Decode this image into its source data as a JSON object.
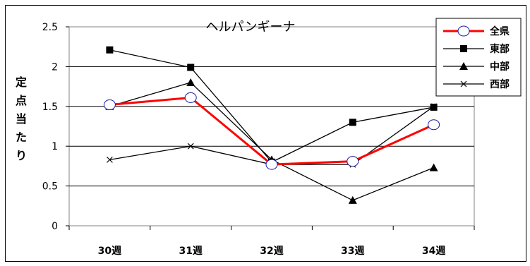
{
  "chart_data": {
    "type": "line",
    "title": "ヘルパンギーナ",
    "ylabel": "定点当たり",
    "xlabel": "",
    "categories": [
      "30週",
      "31週",
      "32週",
      "33週",
      "34週"
    ],
    "ylim": [
      0,
      2.5
    ],
    "yticks": [
      "0",
      "0.5",
      "1",
      "1.5",
      "2",
      "2.5"
    ],
    "grid": true,
    "legend_position": "top-right",
    "series": [
      {
        "name": "全県",
        "values": [
          1.52,
          1.61,
          0.77,
          0.81,
          1.27
        ],
        "color": "#ff0000",
        "marker": "circle"
      },
      {
        "name": "東部",
        "values": [
          2.21,
          1.99,
          0.8,
          1.3,
          1.49
        ],
        "color": "#000000",
        "marker": "square"
      },
      {
        "name": "中部",
        "values": [
          1.5,
          1.8,
          0.83,
          0.32,
          0.73
        ],
        "color": "#000000",
        "marker": "triangle"
      },
      {
        "name": "西部",
        "values": [
          0.83,
          1.0,
          0.77,
          0.77,
          1.5
        ],
        "color": "#000000",
        "marker": "cross"
      }
    ]
  }
}
